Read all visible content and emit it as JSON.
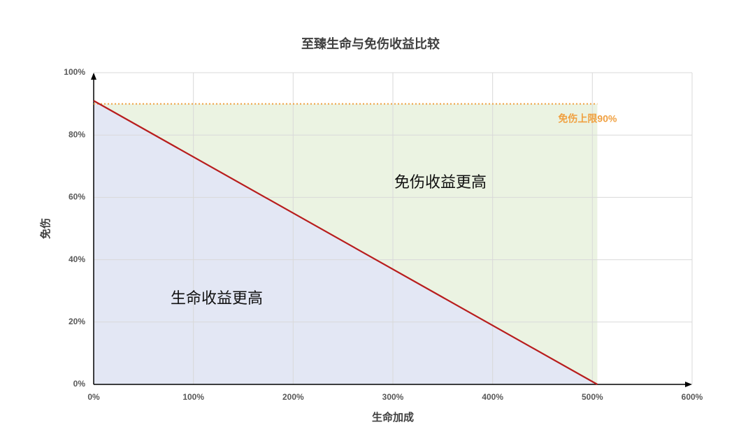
{
  "chart_data": {
    "type": "line",
    "title": "至臻生命与免伤收益比较",
    "x_label": "生命加成",
    "y_label": "免伤",
    "x": [
      0,
      505
    ],
    "values": [
      91,
      0
    ],
    "color": "#b81d1d",
    "xlim": [
      0,
      600
    ],
    "ylim": [
      0,
      100
    ],
    "xticks": [
      {
        "value": 0,
        "label": "0%"
      },
      {
        "value": 100,
        "label": "100%"
      },
      {
        "value": 200,
        "label": "200%"
      },
      {
        "value": 300,
        "label": "300%"
      },
      {
        "value": 400,
        "label": "400%"
      },
      {
        "value": 500,
        "label": "500%"
      },
      {
        "value": 600,
        "label": "600%"
      }
    ],
    "yticks": [
      {
        "value": 0,
        "label": "0%"
      },
      {
        "value": 20,
        "label": "20%"
      },
      {
        "value": 40,
        "label": "40%"
      },
      {
        "value": 60,
        "label": "60%"
      },
      {
        "value": 80,
        "label": "80%"
      },
      {
        "value": 100,
        "label": "100%"
      }
    ],
    "grid": true,
    "reference_line": {
      "value": 90,
      "label": "免伤上限90%",
      "color": "#f0a040"
    },
    "areas": [
      {
        "label": "免伤收益更高",
        "color": "#ebf3e2"
      },
      {
        "label": "生命收益更高",
        "color": "#e3e7f4"
      }
    ]
  }
}
